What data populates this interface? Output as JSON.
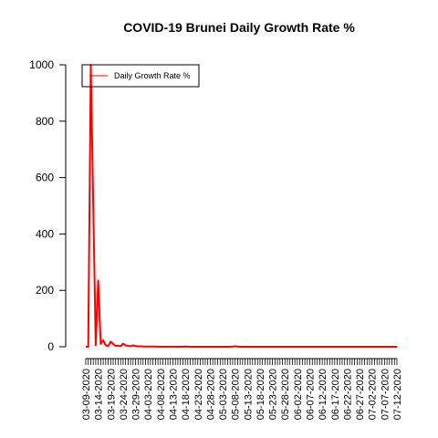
{
  "chart_data": {
    "type": "line",
    "title": "COVID-19 Brunei Daily Growth Rate %",
    "xlabel": "",
    "ylabel": "",
    "ylim": [
      0,
      1000
    ],
    "y_ticks": [
      0,
      200,
      400,
      600,
      800,
      1000
    ],
    "x_start": "03-09-2020",
    "x_end": "07-12-2020",
    "x_tick_labels": [
      "03-09-2020",
      "03-14-2020",
      "03-19-2020",
      "03-24-2020",
      "03-29-2020",
      "04-03-2020",
      "04-08-2020",
      "04-13-2020",
      "04-18-2020",
      "04-23-2020",
      "04-28-2020",
      "05-03-2020",
      "05-08-2020",
      "05-13-2020",
      "05-18-2020",
      "05-23-2020",
      "05-28-2020",
      "06-02-2020",
      "06-07-2020",
      "06-12-2020",
      "06-17-2020",
      "06-22-2020",
      "06-27-2020",
      "07-02-2020",
      "07-07-2020",
      "07-12-2020"
    ],
    "legend": {
      "position": "top-left",
      "entries": [
        "Daily Growth Rate %"
      ]
    },
    "grid": false,
    "series": [
      {
        "name": "Daily Growth Rate %",
        "color": "#ff0000",
        "points": [
          [
            "03-09-2020",
            0
          ],
          [
            "03-10-2020",
            0
          ],
          [
            "03-11-2020",
            1000
          ],
          [
            "03-12-2020",
            500
          ],
          [
            "03-13-2020",
            5
          ],
          [
            "03-14-2020",
            235
          ],
          [
            "03-15-2020",
            10
          ],
          [
            "03-16-2020",
            23
          ],
          [
            "03-17-2020",
            5
          ],
          [
            "03-18-2020",
            3
          ],
          [
            "03-19-2020",
            18
          ],
          [
            "03-20-2020",
            10
          ],
          [
            "03-21-2020",
            3
          ],
          [
            "03-22-2020",
            4
          ],
          [
            "03-23-2020",
            2
          ],
          [
            "03-24-2020",
            11
          ],
          [
            "03-25-2020",
            5
          ],
          [
            "03-26-2020",
            3
          ],
          [
            "03-27-2020",
            2
          ],
          [
            "03-28-2020",
            5
          ],
          [
            "03-29-2020",
            3
          ],
          [
            "03-30-2020",
            1
          ],
          [
            "03-31-2020",
            2
          ],
          [
            "04-01-2020",
            1
          ],
          [
            "04-02-2020",
            1
          ],
          [
            "04-03-2020",
            1
          ],
          [
            "04-04-2020",
            0.5
          ],
          [
            "04-05-2020",
            0.5
          ],
          [
            "04-06-2020",
            0.3
          ],
          [
            "04-07-2020",
            0.3
          ],
          [
            "04-08-2020",
            0
          ],
          [
            "04-12-2020",
            0.3
          ],
          [
            "04-15-2020",
            0
          ],
          [
            "04-18-2020",
            0.7
          ],
          [
            "04-20-2020",
            0
          ],
          [
            "05-06-2020",
            0
          ],
          [
            "05-08-2020",
            1.5
          ],
          [
            "05-10-2020",
            0
          ],
          [
            "07-12-2020",
            0
          ]
        ]
      }
    ]
  }
}
